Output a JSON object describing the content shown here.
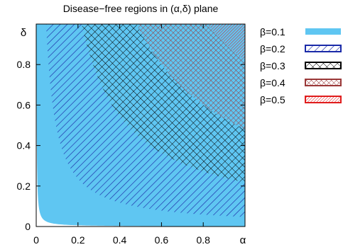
{
  "chart_data": {
    "type": "area",
    "title": "Disease−free regions in (α,δ) plane",
    "xlabel": "α",
    "ylabel": "δ",
    "xlim": [
      0,
      1
    ],
    "ylim": [
      0,
      1
    ],
    "xticks": [
      "0",
      "0.2",
      "0.4",
      "0.6",
      "0.8"
    ],
    "yticks": [
      "0",
      "0.2",
      "0.4",
      "0.6",
      "0.8"
    ],
    "grid": false,
    "legend_position": "right",
    "series": [
      {
        "name": "β=0.1",
        "fill": "solid",
        "color": "#5fc6f2",
        "k": 0.0012
      },
      {
        "name": "β=0.2",
        "fill": "diagonal-hatch",
        "color": "#1a2aa8",
        "k": 0.0472
      },
      {
        "name": "β=0.3",
        "fill": "cross-hatch",
        "color": "#000000",
        "k": 0.2176
      },
      {
        "name": "β=0.4",
        "fill": "cross-hatch",
        "color": "#9a3838",
        "k": 0.48
      },
      {
        "name": "β=0.5",
        "fill": "diagonal-hatch",
        "color": "#e01c1c",
        "k": 0.82
      }
    ]
  }
}
